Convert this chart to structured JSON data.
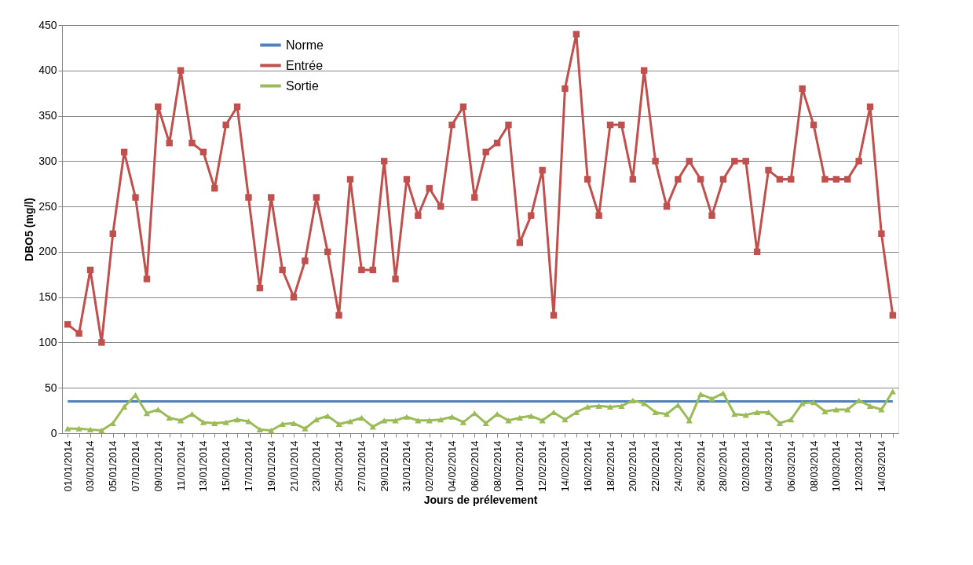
{
  "chart_data": {
    "type": "line",
    "xlabel": "Jours de prélevement",
    "ylabel": "DBO5 (mg/l)",
    "categories": [
      "01/01/2014",
      null,
      "03/01/2014",
      null,
      "05/01/2014",
      null,
      "07/01/2014",
      null,
      "09/01/2014",
      null,
      "11/01/2014",
      null,
      "13/01/2014",
      null,
      "15/01/2014",
      null,
      "17/01/2014",
      null,
      "19/01/2014",
      null,
      "21/01/2014",
      null,
      "23/01/2014",
      null,
      "25/01/2014",
      null,
      "27/01/2014",
      null,
      "29/01/2014",
      null,
      "31/01/2014",
      null,
      "02/02/2014",
      null,
      "04/02/2014",
      null,
      "06/02/2014",
      null,
      "08/02/2014",
      null,
      "10/02/2014",
      null,
      "12/02/2014",
      null,
      "14/02/2014",
      null,
      "16/02/2014",
      null,
      "18/02/2014",
      null,
      "20/02/2014",
      null,
      "22/02/2014",
      null,
      "24/02/2014",
      null,
      "26/02/2014",
      null,
      "28/02/2014",
      null,
      "02/03/2014",
      null,
      "04/03/2014",
      null,
      "06/03/2014",
      null,
      "08/03/2014",
      null,
      "10/03/2014",
      null,
      "12/03/2014",
      null,
      "14/03/2014",
      null
    ],
    "series": [
      {
        "name": "Norme",
        "color": "#4f81bd",
        "marker": "none",
        "values": [
          35,
          35,
          35,
          35,
          35,
          35,
          35,
          35,
          35,
          35,
          35,
          35,
          35,
          35,
          35,
          35,
          35,
          35,
          35,
          35,
          35,
          35,
          35,
          35,
          35,
          35,
          35,
          35,
          35,
          35,
          35,
          35,
          35,
          35,
          35,
          35,
          35,
          35,
          35,
          35,
          35,
          35,
          35,
          35,
          35,
          35,
          35,
          35,
          35,
          35,
          35,
          35,
          35,
          35,
          35,
          35,
          35,
          35,
          35,
          35,
          35,
          35,
          35,
          35,
          35,
          35,
          35,
          35,
          35,
          35,
          35,
          35,
          35,
          35
        ]
      },
      {
        "name": "Entrée",
        "color": "#c0504d",
        "marker": "square",
        "values": [
          120,
          110,
          180,
          100,
          220,
          310,
          260,
          170,
          360,
          320,
          400,
          320,
          310,
          270,
          340,
          360,
          260,
          160,
          260,
          180,
          150,
          190,
          260,
          200,
          130,
          280,
          180,
          180,
          300,
          170,
          280,
          240,
          270,
          250,
          340,
          360,
          260,
          310,
          320,
          340,
          210,
          240,
          290,
          130,
          380,
          440,
          280,
          240,
          340,
          340,
          280,
          400,
          300,
          250,
          280,
          300,
          280,
          240,
          280,
          300,
          300,
          200,
          290,
          280,
          280,
          380,
          340,
          280,
          280,
          280,
          300,
          360,
          220,
          130
        ]
      },
      {
        "name": "Sortie",
        "color": "#9bbb59",
        "marker": "triangle",
        "values": [
          5,
          5,
          4,
          3,
          11,
          29,
          42,
          22,
          26,
          17,
          14,
          21,
          12,
          11,
          12,
          15,
          13,
          4,
          3,
          10,
          11,
          5,
          15,
          19,
          10,
          13,
          17,
          7,
          14,
          14,
          18,
          14,
          14,
          15,
          18,
          12,
          22,
          11,
          21,
          14,
          17,
          19,
          14,
          23,
          15,
          23,
          29,
          30,
          29,
          30,
          36,
          33,
          23,
          21,
          31,
          14,
          43,
          38,
          44,
          21,
          20,
          23,
          23,
          11,
          15,
          33,
          34,
          24,
          26,
          26,
          36,
          30,
          26,
          46
        ]
      }
    ],
    "ylim": [
      0,
      450
    ],
    "yticks": [
      0,
      50,
      100,
      150,
      200,
      250,
      300,
      350,
      400,
      450
    ],
    "grid": "y",
    "legend": "top",
    "line_style": "solid"
  }
}
